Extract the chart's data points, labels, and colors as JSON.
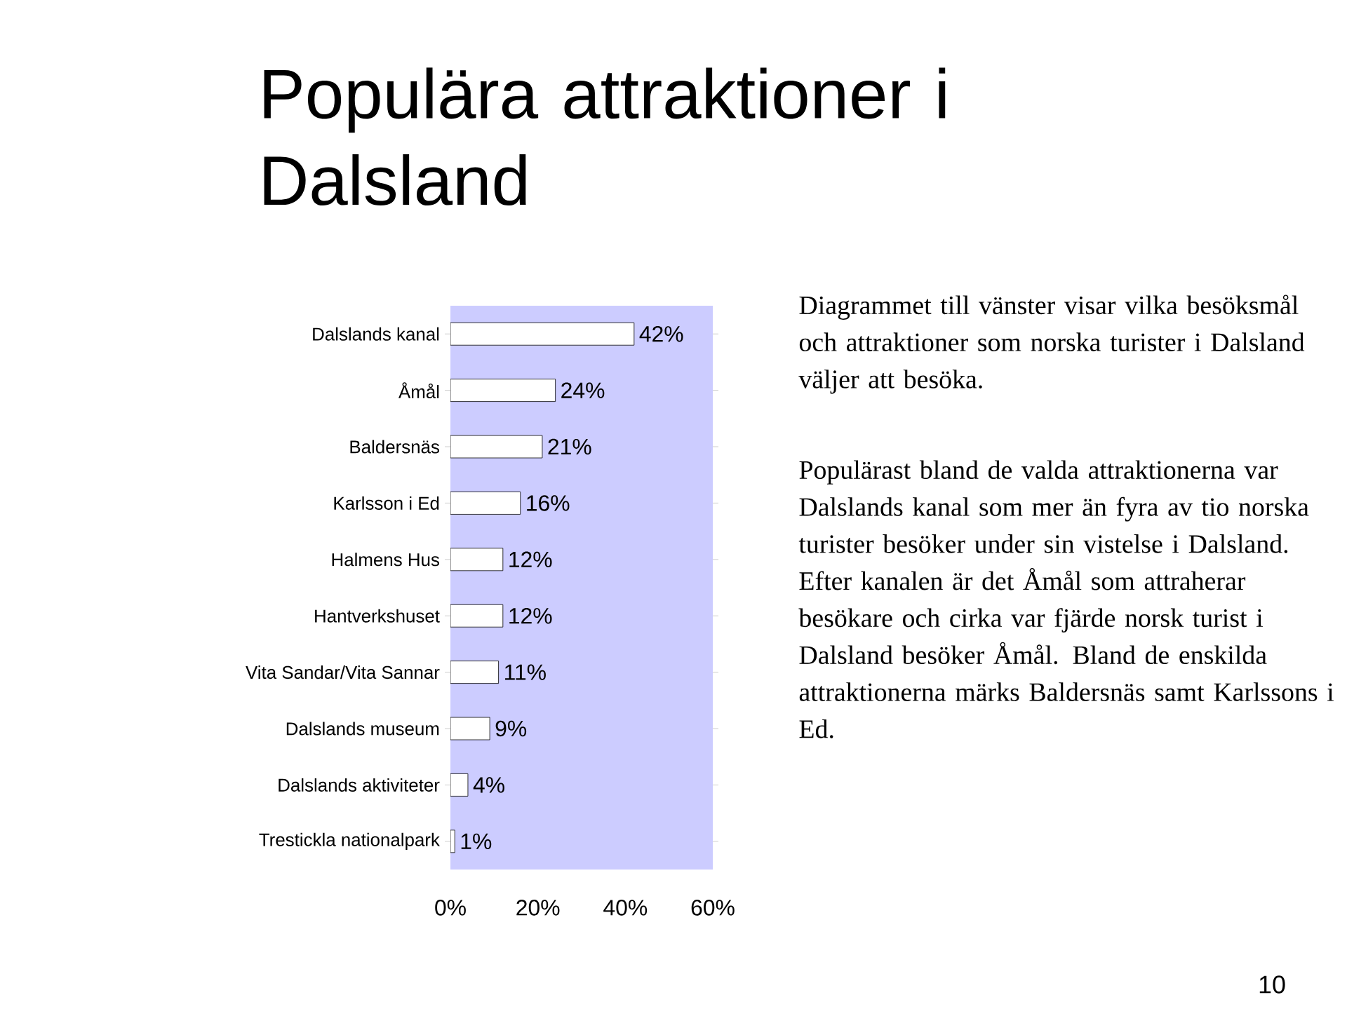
{
  "chart_data": {
    "type": "bar",
    "orientation": "horizontal",
    "title": "Populära attraktioner i Dalsland",
    "categories": [
      "Dalslands kanal",
      "Åmål",
      "Baldersnäs",
      "Karlsson i Ed",
      "Halmens Hus",
      "Hantverkshuset",
      "Vita Sandar/Vita Sannar",
      "Dalslands museum",
      "Dalslands aktiviteter",
      "Trestickla nationalpark"
    ],
    "values": [
      42,
      24,
      21,
      16,
      12,
      12,
      11,
      9,
      4,
      1
    ],
    "value_labels": [
      "42%",
      "24%",
      "21%",
      "16%",
      "12%",
      "12%",
      "11%",
      "9%",
      "4%",
      "1%"
    ],
    "color": "#ffffff",
    "xlim": [
      0,
      60
    ],
    "xticks": [
      {
        "value": 0,
        "label": "0%"
      },
      {
        "value": 20,
        "label": "20%"
      },
      {
        "value": 40,
        "label": "40%"
      },
      {
        "value": 60,
        "label": "60%"
      }
    ],
    "grid": false,
    "annotations": [
      "Diagrammet till vänster visar vilka besöksmål och attraktioner som norska turister i Dalsland väljer att besöka.",
      "Populärast bland de valda attraktionerna var Dalslands kanal som mer än fyra av tio norska turister besöker under sin vistelse i Dalsland. Efter kanalen är det Åmål som attraherar besökare och cirka var fjärde norsk turist i Dalsland besöker Åmål. Bland de enskilda attraktionerna märks Baldersnäs samt Karlssons i Ed.",
      "10"
    ]
  }
}
